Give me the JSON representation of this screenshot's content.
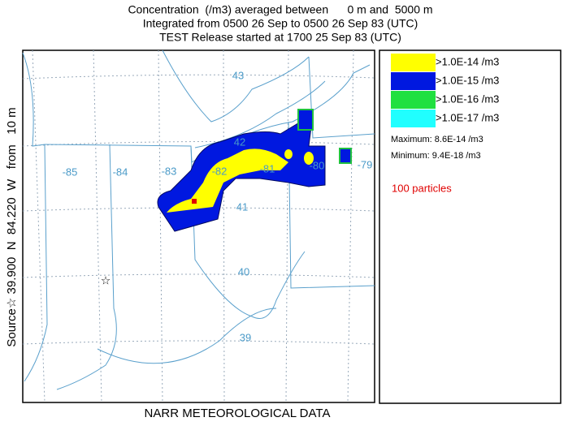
{
  "header": {
    "lines": [
      "Concentration  (/m3) averaged between      0 m and  5000 m",
      "Integrated from 0500 26 Sep to 0500 26 Sep 83 (UTC)",
      "TEST Release started at 1700 25 Sep 83 (UTC)"
    ]
  },
  "source_label": "Source☆ 39.900  N  84.220  W   from   10 m",
  "footer": "NARR METEOROLOGICAL DATA",
  "map": {
    "lon_labels": [
      "-85",
      "-84",
      "-83",
      "-82",
      "-81",
      "-80",
      "-79"
    ],
    "lat_labels": [
      "43",
      "42",
      "41",
      "40",
      "39"
    ]
  },
  "legend": {
    "levels": [
      {
        "label": ">1.0E-14 /m3",
        "color": "#ffff00"
      },
      {
        "label": ">1.0E-15 /m3",
        "color": "#0018e0"
      },
      {
        "label": ">1.0E-16 /m3",
        "color": "#20e040"
      },
      {
        "label": ">1.0E-17 /m3",
        "color": "#20ffff"
      }
    ],
    "maximum": "Maximum: 8.6E-14 /m3",
    "minimum": "Minimum: 9.4E-18 /m3",
    "particles": "100 particles"
  }
}
